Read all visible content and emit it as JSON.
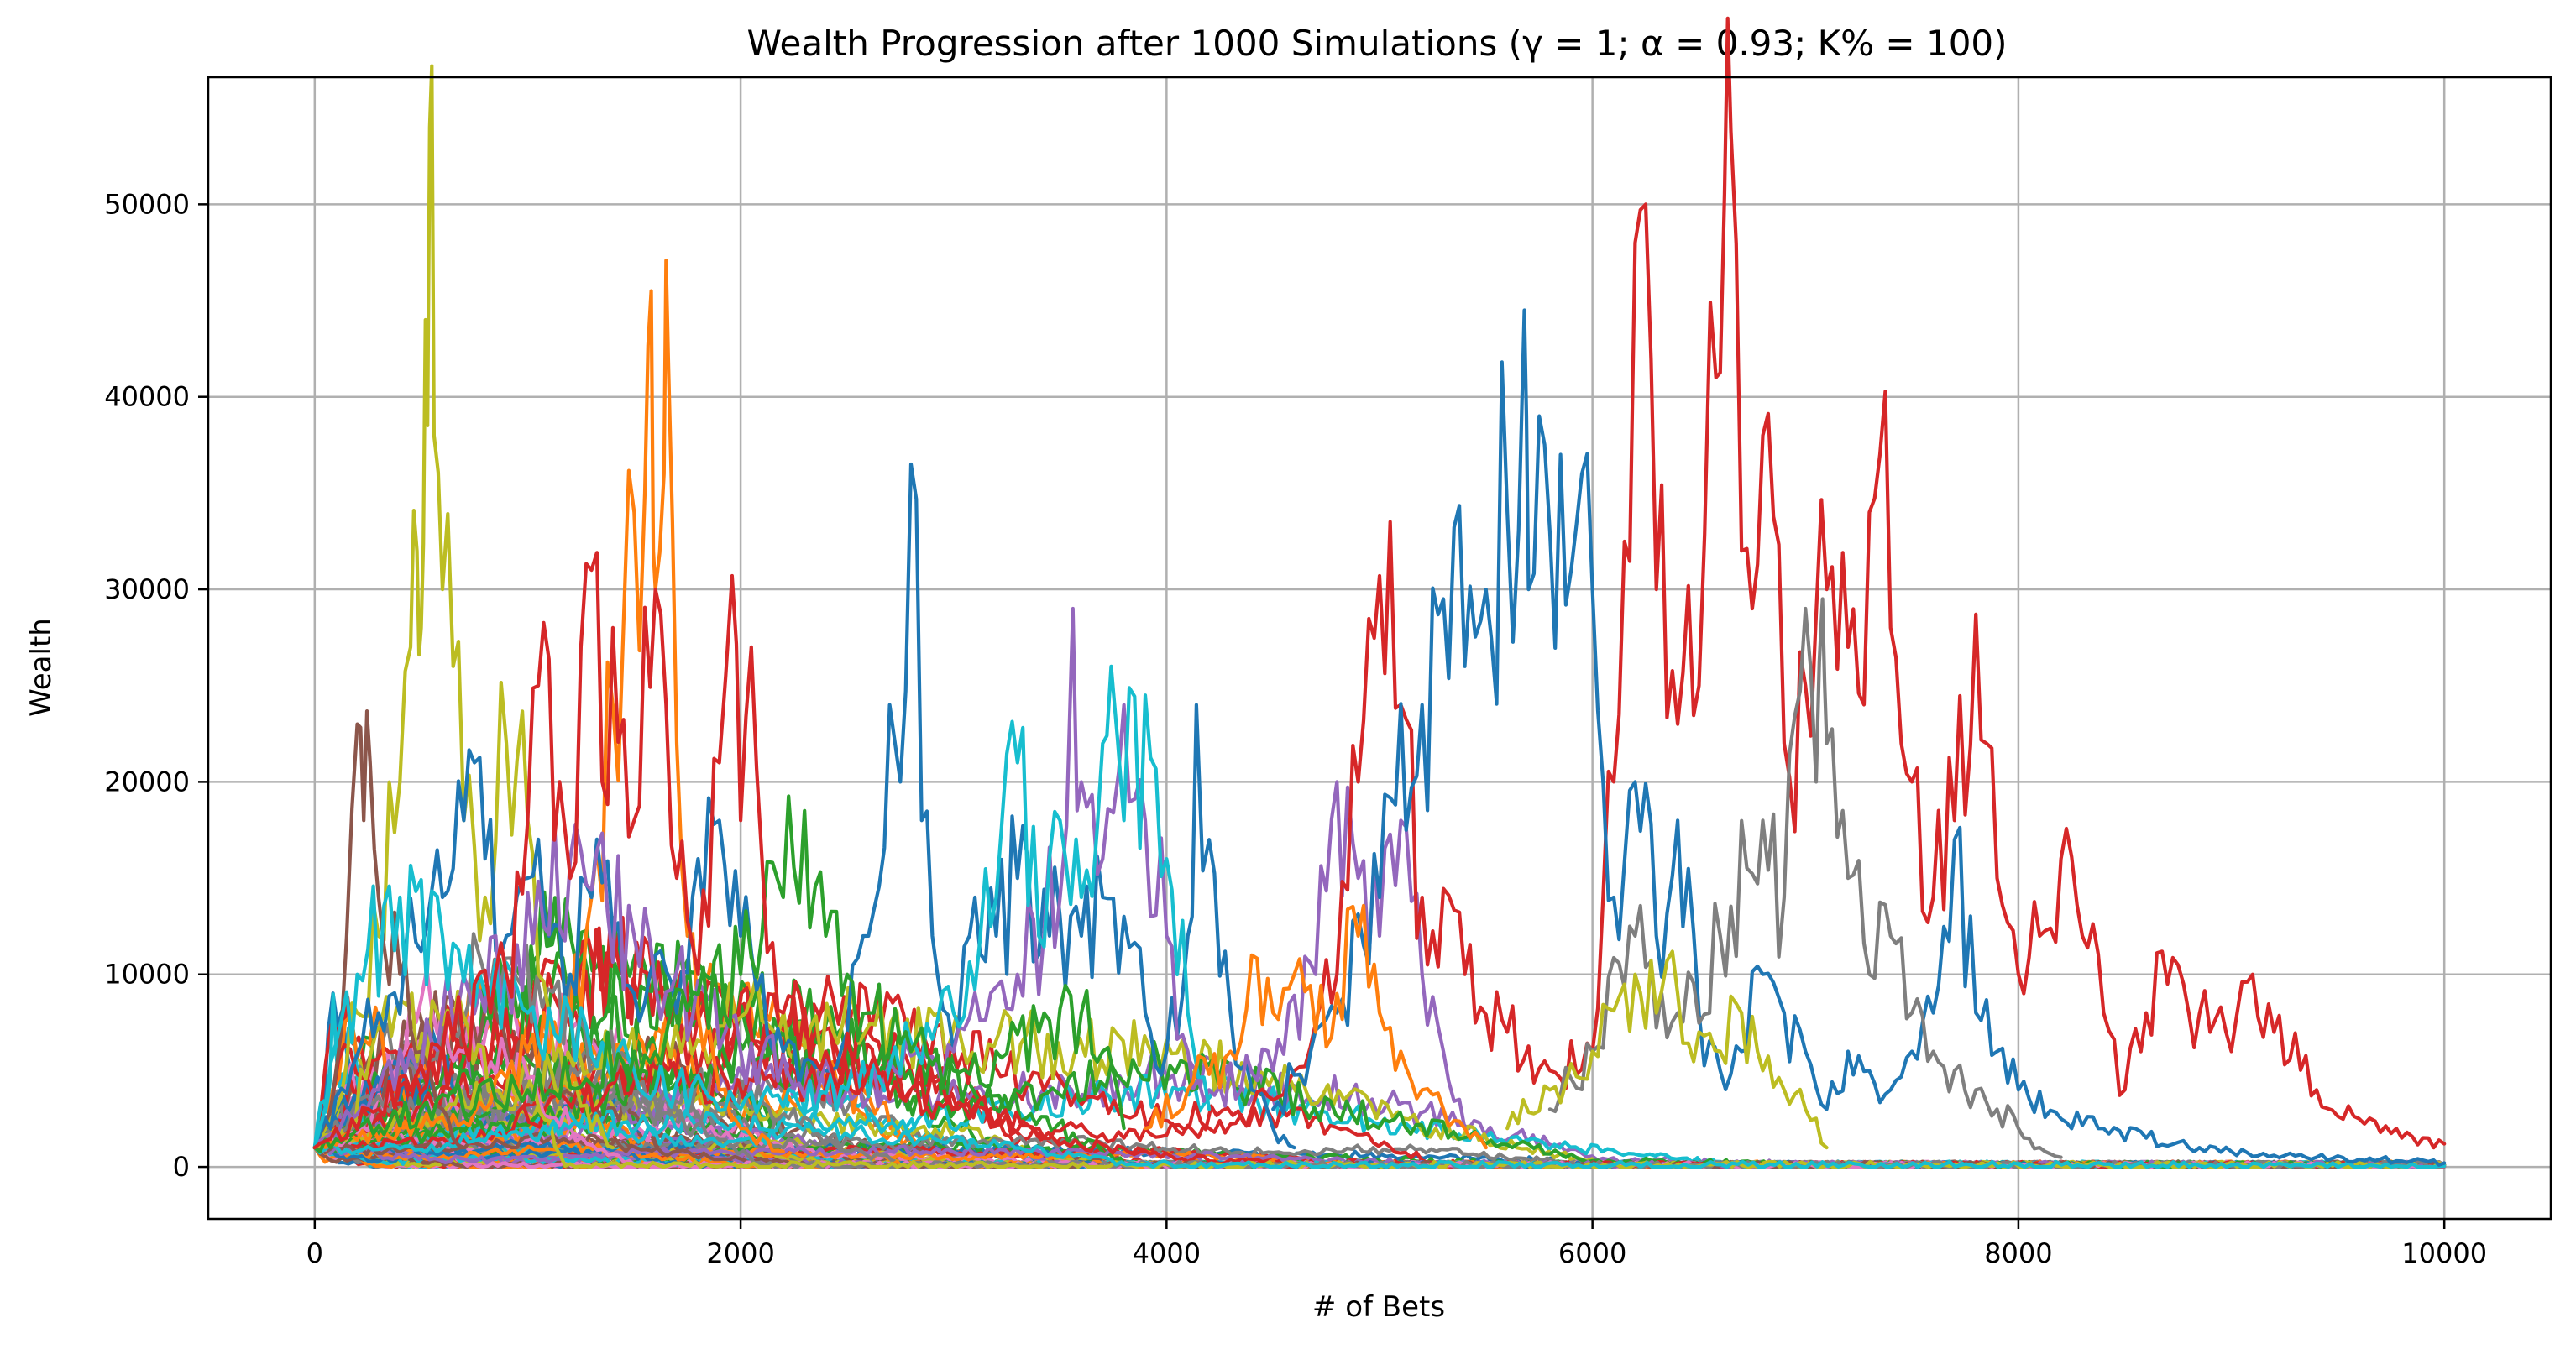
{
  "chart_data": {
    "type": "line",
    "title": "Wealth Progression after 1000 Simulations (γ = 1; α = 0.93; K% = 100)",
    "xlabel": "# of Bets",
    "ylabel": "Wealth",
    "xlim": [
      -500,
      10500
    ],
    "ylim": [
      -2700,
      56600
    ],
    "xticks": [
      0,
      2000,
      4000,
      6000,
      8000,
      10000
    ],
    "xtick_labels": [
      "0",
      "2000",
      "4000",
      "6000",
      "8000",
      "10000"
    ],
    "yticks": [
      0,
      10000,
      20000,
      30000,
      40000,
      50000
    ],
    "ytick_labels": [
      "0",
      "10000",
      "20000",
      "30000",
      "40000",
      "50000"
    ],
    "grid": true,
    "legend": "none",
    "note_series": "1000 simulated paths; representative paths listed, bulk paths generated by script",
    "series": [
      {
        "color": "#bcbd22",
        "x": [
          0,
          100,
          200,
          300,
          400,
          450,
          480,
          500,
          520,
          540,
          560,
          600,
          650,
          700,
          800,
          900,
          1000,
          1050,
          1100,
          1200,
          1400
        ],
        "y": [
          1000,
          3000,
          8000,
          12000,
          20000,
          27000,
          32000,
          28000,
          44000,
          54000,
          38000,
          30000,
          26000,
          18000,
          14000,
          22000,
          18000,
          10000,
          8000,
          4000,
          1000
        ]
      },
      {
        "color": "#ff7f0e",
        "x": [
          0,
          400,
          800,
          1000,
          1200,
          1300,
          1400,
          1500,
          1550,
          1580,
          1600,
          1640,
          1660,
          1700,
          1750,
          1800,
          1900,
          2000,
          2200
        ],
        "y": [
          1000,
          2000,
          3000,
          6000,
          8000,
          14000,
          24000,
          34000,
          35000,
          45500,
          30000,
          36000,
          42000,
          22000,
          12000,
          8000,
          4000,
          2000,
          800
        ]
      },
      {
        "color": "#8c564b",
        "x": [
          0,
          100,
          150,
          200,
          230,
          260,
          300,
          400,
          500,
          600,
          700
        ],
        "y": [
          1000,
          5000,
          12000,
          23000,
          18000,
          21000,
          14000,
          10000,
          6000,
          3000,
          1000
        ]
      },
      {
        "color": "#1f77b4",
        "x": [
          0,
          300,
          600,
          700,
          750,
          800,
          900,
          1000,
          1100,
          1200,
          1300,
          1400,
          1500,
          1600,
          1700,
          1800,
          1900,
          2000,
          2100,
          2200,
          2400,
          2500,
          2600,
          2700,
          2750,
          2800,
          2850,
          2900,
          3000,
          3100,
          3200,
          3300,
          3400,
          3500,
          3600,
          3700,
          3800,
          3900,
          4000,
          4100,
          4140,
          4200,
          4300,
          4400,
          4500,
          4600
        ],
        "y": [
          1000,
          8000,
          14000,
          18000,
          21000,
          16000,
          12000,
          15000,
          12000,
          10000,
          14000,
          12000,
          9000,
          11000,
          8000,
          16000,
          18000,
          12000,
          10000,
          6000,
          5000,
          7000,
          12000,
          24000,
          20000,
          36500,
          18000,
          12000,
          6000,
          14000,
          12000,
          15000,
          11000,
          13000,
          12000,
          14000,
          13000,
          8000,
          6000,
          12000,
          24000,
          17000,
          8000,
          4000,
          2000,
          1000
        ]
      },
      {
        "color": "#9467bd",
        "x": [
          0,
          300,
          600,
          900,
          1200,
          1500,
          2000,
          2500,
          3000,
          3300,
          3500,
          3560,
          3600,
          3700,
          3800,
          3900,
          4000,
          4100,
          4200,
          4500,
          4700,
          4800,
          4900,
          5000,
          5100,
          5200,
          5300,
          5400
        ],
        "y": [
          1000,
          4000,
          8000,
          10000,
          16000,
          12000,
          6000,
          4000,
          6000,
          10000,
          14000,
          29000,
          20000,
          16000,
          24000,
          18000,
          12000,
          6000,
          4000,
          5000,
          10000,
          20000,
          15000,
          12000,
          18000,
          10000,
          6000,
          2000
        ]
      },
      {
        "color": "#17becf",
        "x": [
          0,
          200,
          400,
          600,
          800,
          1000,
          1500,
          2000,
          2500,
          3000,
          3200,
          3300,
          3400,
          3500,
          3600,
          3700,
          3740,
          3800,
          3900,
          4000,
          4100,
          4200
        ],
        "y": [
          1000,
          10000,
          14000,
          12000,
          9000,
          8000,
          5000,
          3000,
          4000,
          8000,
          14000,
          21000,
          12000,
          18000,
          14000,
          22000,
          26000,
          18000,
          24500,
          16000,
          8000,
          3000
        ]
      },
      {
        "color": "#2ca02c",
        "x": [
          0,
          500,
          1000,
          1500,
          2000,
          2100,
          2200,
          2300,
          2400,
          2500,
          2600,
          2800,
          3000,
          3200,
          3400,
          3600,
          3700,
          3800
        ],
        "y": [
          1000,
          3000,
          4000,
          6000,
          10000,
          12000,
          14000,
          18500,
          12000,
          10000,
          8000,
          6000,
          5000,
          6000,
          7000,
          8000,
          6000,
          2000
        ]
      },
      {
        "color": "#d62728",
        "x": [
          0,
          300,
          600,
          900,
          1000,
          1050,
          1200,
          1300,
          1350,
          1400,
          1500,
          1600,
          1650,
          1700,
          1800,
          1900,
          1960,
          2000,
          2050,
          2100,
          2200,
          2400,
          2600,
          2800,
          3000,
          3400,
          3800,
          4200,
          4400,
          4600,
          4800,
          4900,
          5000,
          5100,
          5200,
          5400,
          5600,
          5800,
          6000,
          6100,
          6200,
          6250,
          6300,
          6400,
          6500,
          6580,
          6620,
          6650,
          6700,
          6750,
          6800,
          6900,
          7000,
          7100,
          7200,
          7300,
          7350,
          7400,
          7450,
          7500,
          7600,
          7700,
          7800,
          7850,
          7900,
          8000,
          8100,
          8200,
          8300,
          8400,
          8500,
          8600,
          8700,
          8800,
          8900,
          9000,
          9100,
          9200,
          9400,
          9600,
          9800,
          10000
        ],
        "y": [
          1000,
          3000,
          6000,
          10000,
          18000,
          25000,
          15000,
          31000,
          20000,
          28000,
          18000,
          30000,
          24000,
          15000,
          10000,
          21000,
          30700,
          18000,
          27000,
          16000,
          8000,
          6000,
          5000,
          4000,
          3000,
          2000,
          1500,
          2000,
          3000,
          5000,
          10000,
          20000,
          30700,
          24000,
          14000,
          10000,
          7000,
          5000,
          6000,
          20000,
          48000,
          50000,
          30000,
          23000,
          25000,
          41000,
          50500,
          53800,
          32000,
          29000,
          38000,
          22000,
          25000,
          30000,
          27000,
          34000,
          37000,
          28000,
          22000,
          20000,
          14000,
          18000,
          28700,
          22000,
          15000,
          10000,
          12000,
          16000,
          12000,
          8000,
          4000,
          8000,
          9500,
          8000,
          7000,
          6000,
          10000,
          7000,
          4000,
          2500,
          1500,
          1200
        ]
      },
      {
        "color": "#1f77b4",
        "x": [
          4500,
          4800,
          5000,
          5200,
          5300,
          5400,
          5500,
          5600,
          5680,
          5700,
          5750,
          5800,
          5850,
          5900,
          5950,
          6000,
          6050,
          6100,
          6200,
          6300,
          6400,
          6500,
          6600,
          6700,
          6800,
          6900,
          7000,
          7100,
          7200,
          7300,
          7400,
          7500,
          7600,
          7700,
          7800,
          7900,
          8000,
          8200,
          8400,
          8600,
          8800,
          9000,
          9200,
          9400,
          9600,
          9800,
          10000
        ],
        "y": [
          3000,
          8000,
          14000,
          24000,
          29500,
          26000,
          30000,
          34000,
          44500,
          30000,
          39000,
          33000,
          37000,
          31000,
          36000,
          30000,
          20000,
          14000,
          20000,
          12000,
          18000,
          8000,
          5000,
          6000,
          10000,
          8000,
          6000,
          3000,
          6000,
          5000,
          4000,
          6000,
          8000,
          17000,
          8000,
          6000,
          4000,
          2500,
          2000,
          1500,
          1000,
          800,
          600,
          500,
          400,
          300,
          200
        ]
      },
      {
        "color": "#7f7f7f",
        "x": [
          5800,
          6000,
          6200,
          6400,
          6600,
          6800,
          6900,
          7000,
          7050,
          7080,
          7100,
          7200,
          7300,
          7400,
          7500,
          7600,
          7700,
          7800,
          7900,
          8000,
          8100,
          8200
        ],
        "y": [
          3000,
          6000,
          12000,
          8000,
          12000,
          18000,
          14000,
          29000,
          20000,
          29500,
          22000,
          15000,
          10000,
          12000,
          8000,
          6000,
          5000,
          4000,
          3000,
          2000,
          1000,
          500
        ]
      },
      {
        "color": "#bcbd22",
        "x": [
          5600,
          5800,
          6000,
          6200,
          6300,
          6400,
          6500,
          6600,
          6700,
          6800,
          6900,
          7000,
          7100
        ],
        "y": [
          2000,
          4000,
          6000,
          10000,
          8000,
          9000,
          7000,
          6000,
          8000,
          5000,
          4000,
          3000,
          1000
        ]
      },
      {
        "color": "#ff7f0e",
        "x": [
          3900,
          4100,
          4300,
          4400,
          4500,
          4600,
          4700,
          4800,
          4900,
          5000,
          5100,
          5200,
          5300,
          5400,
          5500
        ],
        "y": [
          2000,
          4000,
          6000,
          11000,
          8000,
          10000,
          7000,
          9000,
          12000,
          8000,
          6000,
          4000,
          3000,
          2000,
          1000
        ]
      }
    ]
  }
}
